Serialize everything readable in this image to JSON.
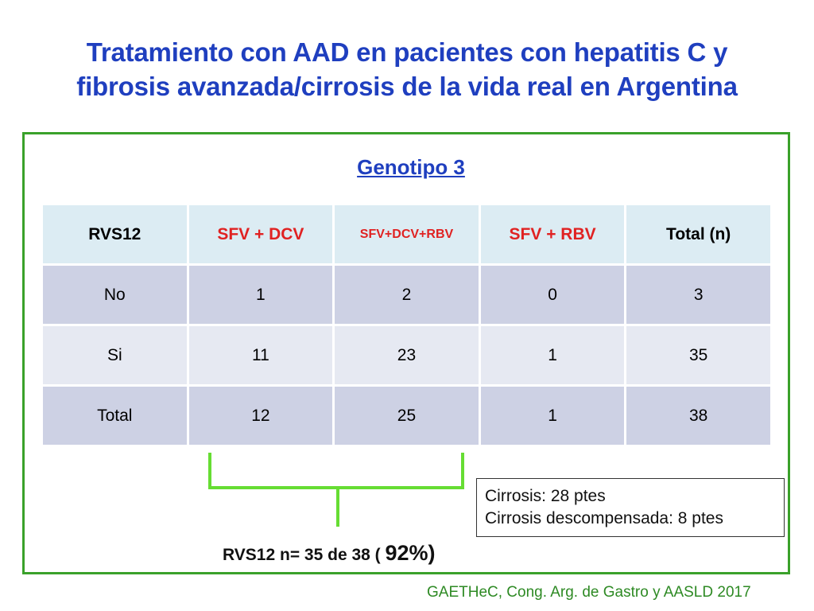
{
  "slide": {
    "title_line1": "Tratamiento con AAD en pacientes con hepatitis C y",
    "title_line2": "fibrosis avanzada/cirrosis de la vida real en Argentina",
    "subtitle": "Genotipo 3",
    "table": {
      "headers": [
        "RVS12",
        "SFV + DCV",
        "SFV+DCV+RBV",
        "SFV + RBV",
        "Total (n)"
      ],
      "rows": [
        [
          "No",
          "1",
          "2",
          "0",
          "3"
        ],
        [
          "Si",
          "11",
          "23",
          "1",
          "35"
        ],
        [
          "Total",
          "12",
          "25",
          "1",
          "38"
        ]
      ]
    },
    "cirrosis_box": {
      "line1": "Cirrosis: 28 ptes",
      "line2": "Cirrosis descompensada: 8 ptes"
    },
    "result": {
      "prefix": "RVS12 n= 35 de 38 ( ",
      "percent": "92%",
      "suffix": ")"
    },
    "source": "GAETHeC, Cong. Arg. de Gastro y AASLD 2017",
    "colors": {
      "title": "#1f3fbf",
      "frame": "#3aa12a",
      "header_red": "#e02222",
      "bracket": "#66dd33",
      "source": "#2e8a24"
    }
  }
}
